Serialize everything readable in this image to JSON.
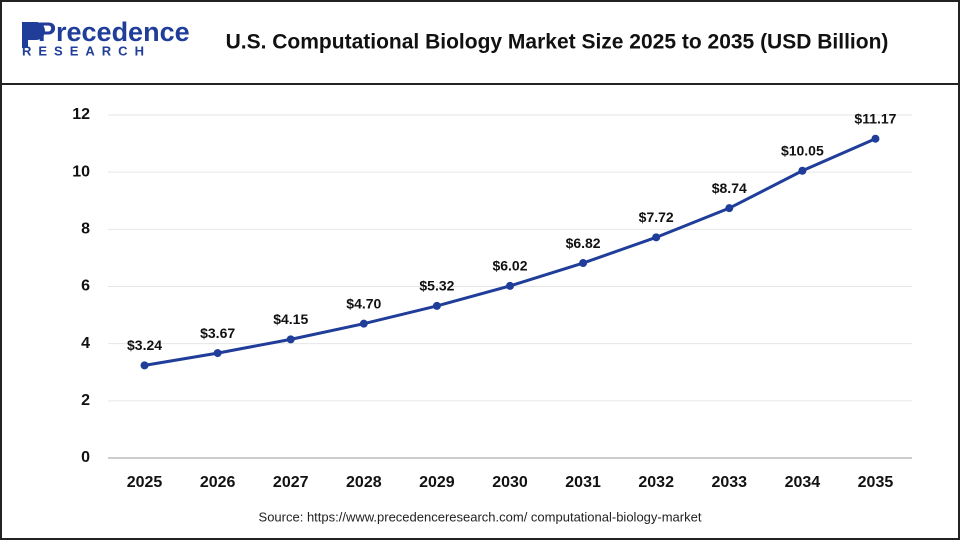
{
  "logo": {
    "name": "Precedence",
    "tagline": "RESEARCH"
  },
  "chart_data": {
    "type": "line",
    "title": "U.S. Computational Biology Market Size 2025 to 2035 (USD Billion)",
    "source": "Source: https://www.precedenceresearch.com/ computational-biology-market",
    "categories": [
      "2025",
      "2026",
      "2027",
      "2028",
      "2029",
      "2030",
      "2031",
      "2032",
      "2033",
      "2034",
      "2035"
    ],
    "series": [
      {
        "name": "U.S. Computational Biology Market Size",
        "color": "#1f3d99",
        "values": [
          3.24,
          3.67,
          4.15,
          4.7,
          5.32,
          6.02,
          6.82,
          7.72,
          8.74,
          10.05,
          11.17
        ],
        "value_labels": [
          "$3.24",
          "$3.67",
          "$4.15",
          "$4.70",
          "$5.32",
          "$6.02",
          "$6.82",
          "$7.72",
          "$8.74",
          "$10.05",
          "$11.17"
        ]
      }
    ],
    "ylim": [
      0,
      12
    ],
    "yticks": [
      0,
      2,
      4,
      6,
      8,
      10,
      12
    ],
    "grid": true
  }
}
